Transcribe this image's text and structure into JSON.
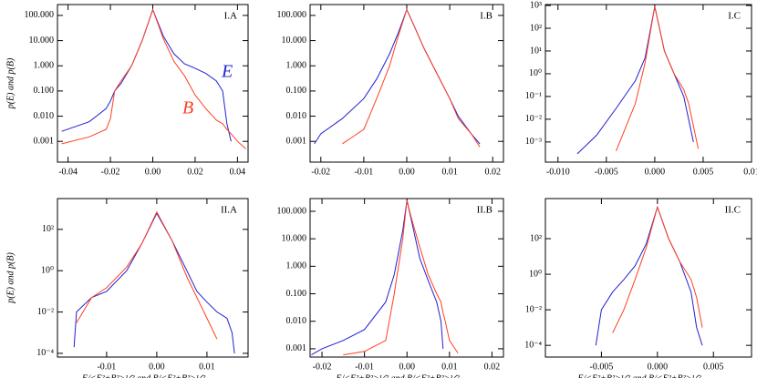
{
  "chart_data": [
    {
      "type": "line",
      "annotation": "I.A",
      "y_label": "p(E) and p(B)",
      "ylog": true,
      "xlim": [
        -0.045,
        0.045
      ],
      "ylim": [
        0.00015,
        270
      ],
      "xticks": [
        -0.04,
        -0.02,
        {
          "value": 0,
          "label": "0.00"
        },
        0.02,
        0.04
      ],
      "yticks": [
        {
          "value": 100,
          "label": "100.000"
        },
        {
          "value": 10,
          "label": "10.000"
        },
        {
          "value": 1,
          "label": "1.000"
        },
        {
          "value": 0.1,
          "label": "0.100"
        },
        {
          "value": 0.01,
          "label": "0.010"
        },
        0.001
      ],
      "x": [
        -0.043,
        -0.03,
        -0.022,
        -0.02,
        -0.018,
        -0.015,
        -0.01,
        -0.005,
        0,
        0.005,
        0.01,
        0.015,
        0.02,
        0.025,
        0.03,
        0.033,
        0.035,
        0.037,
        0.04,
        0.044
      ],
      "series": [
        {
          "name": "E",
          "color": "#2020d0",
          "values": [
            0.0025,
            0.006,
            0.02,
            0.04,
            0.1,
            0.2,
            1,
            10,
            170,
            15,
            3,
            1.2,
            0.8,
            0.5,
            0.25,
            0.1,
            0.005,
            0.001,
            null,
            null
          ]
        },
        {
          "name": "B",
          "color": "#ff4020",
          "values": [
            0.0008,
            0.0015,
            0.003,
            0.008,
            0.1,
            0.25,
            1,
            10,
            170,
            12,
            1.5,
            0.4,
            0.07,
            0.02,
            0.007,
            0.005,
            0.003,
            0.002,
            0.001,
            0.0005
          ]
        }
      ]
    },
    {
      "type": "line",
      "annotation": "I.B",
      "ylog": true,
      "xlim": [
        -0.0225,
        0.0225
      ],
      "ylim": [
        0.00015,
        270
      ],
      "xticks": [
        -0.02,
        -0.01,
        {
          "value": 0,
          "label": "0.00"
        },
        0.01,
        0.02
      ],
      "yticks": [
        {
          "value": 100,
          "label": "100.000"
        },
        {
          "value": 10,
          "label": "10.000"
        },
        {
          "value": 1,
          "label": "1.000"
        },
        {
          "value": 0.1,
          "label": "0.100"
        },
        {
          "value": 0.01,
          "label": "0.010"
        },
        0.001
      ],
      "x": [
        -0.0215,
        -0.02,
        -0.015,
        -0.01,
        -0.007,
        -0.004,
        -0.002,
        0,
        0.002,
        0.004,
        0.007,
        0.01,
        0.012,
        0.015,
        0.017
      ],
      "series": [
        {
          "color": "#2020d0",
          "values": [
            0.0008,
            0.002,
            0.008,
            0.05,
            0.3,
            3,
            20,
            170,
            30,
            5,
            0.5,
            0.05,
            0.01,
            0.002,
            0.0008
          ]
        },
        {
          "color": "#ff4020",
          "values": [
            null,
            null,
            0.0008,
            0.003,
            0.05,
            1,
            15,
            170,
            30,
            5,
            0.5,
            0.05,
            0.008,
            0.002,
            0.0006
          ]
        }
      ]
    },
    {
      "type": "line",
      "annotation": "I.C",
      "ylog": true,
      "xlim": [
        -0.0113,
        0.01
      ],
      "ylim": [
        0.00013,
        1100
      ],
      "xticks": [
        {
          "value": -0.01,
          "label": "-0.010"
        },
        -0.005,
        {
          "value": 0,
          "label": "0.000"
        },
        0.005,
        0.01
      ],
      "yticks": [
        {
          "value": 1000,
          "label": "10³"
        },
        {
          "value": 100,
          "label": "10²"
        },
        {
          "value": 10,
          "label": "10¹"
        },
        {
          "value": 1,
          "label": "10⁰"
        },
        {
          "value": 0.1,
          "label": "10⁻¹"
        },
        {
          "value": 0.01,
          "label": "10⁻²"
        },
        {
          "value": 0.001,
          "label": "10⁻³"
        }
      ],
      "x": [
        -0.008,
        -0.006,
        -0.004,
        -0.002,
        -0.001,
        0,
        0.001,
        0.002,
        0.003,
        0.0035,
        0.004,
        0.0045
      ],
      "series": [
        {
          "color": "#2020d0",
          "values": [
            0.0003,
            0.002,
            0.03,
            0.5,
            5,
            900,
            10,
            1,
            0.1,
            0.01,
            0.001,
            null
          ]
        },
        {
          "color": "#ff4020",
          "values": [
            null,
            null,
            0.0004,
            0.05,
            3,
            900,
            10,
            1,
            0.2,
            0.05,
            0.005,
            0.0005
          ]
        }
      ]
    },
    {
      "type": "line",
      "annotation": "II.A",
      "y_label": "p(E) and p(B)",
      "x_label": "E/<E²+B²>¹ᐟ²  and  B/<E²+B²>¹ᐟ²",
      "ylog": true,
      "xlim": [
        -0.0198,
        0.0182
      ],
      "ylim": [
        6.6e-05,
        3100
      ],
      "xticks": [
        -0.01,
        {
          "value": 0,
          "label": "0.00"
        },
        0.01
      ],
      "yticks": [
        {
          "value": 100,
          "label": "10²"
        },
        {
          "value": 1,
          "label": "10⁰"
        },
        {
          "value": 0.01,
          "label": "10⁻²"
        },
        {
          "value": 0.0001,
          "label": "10⁻⁴"
        }
      ],
      "x": [
        -0.0165,
        -0.016,
        -0.013,
        -0.01,
        -0.006,
        -0.003,
        0,
        0.003,
        0.006,
        0.008,
        0.01,
        0.012,
        0.014,
        0.015,
        0.0155
      ],
      "series": [
        {
          "color": "#2020d0",
          "values": [
            0.0002,
            0.01,
            0.05,
            0.1,
            1,
            20,
            600,
            30,
            1,
            0.1,
            0.03,
            0.01,
            0.005,
            0.001,
            0.0001
          ]
        },
        {
          "color": "#ff4020",
          "values": [
            null,
            0.003,
            0.05,
            0.15,
            1.5,
            20,
            700,
            30,
            0.5,
            0.05,
            0.005,
            0.0005,
            null,
            null,
            null
          ]
        }
      ]
    },
    {
      "type": "line",
      "annotation": "II.B",
      "x_label": "E/<E²+B²>¹ᐟ²  and  B/<E²+B²>¹ᐟ²",
      "ylog": true,
      "xlim": [
        -0.0228,
        0.0227
      ],
      "ylim": [
        0.0005,
        290
      ],
      "xticks": [
        -0.02,
        -0.01,
        {
          "value": 0,
          "label": "0.00"
        },
        0.01,
        0.02
      ],
      "yticks": [
        {
          "value": 100,
          "label": "100.000"
        },
        {
          "value": 10,
          "label": "10.000"
        },
        {
          "value": 1,
          "label": "1.000"
        },
        {
          "value": 0.1,
          "label": "0.100"
        },
        {
          "value": 0.01,
          "label": "0.010"
        },
        0.001
      ],
      "x": [
        -0.0225,
        -0.02,
        -0.015,
        -0.01,
        -0.005,
        -0.003,
        -0.001,
        0,
        0.001,
        0.003,
        0.005,
        0.007,
        0.008,
        0.0085,
        0.009,
        0.01,
        0.012
      ],
      "series": [
        {
          "color": "#2020d0",
          "values": [
            0.0006,
            0.001,
            0.002,
            0.005,
            0.05,
            0.5,
            20,
            250,
            50,
            2,
            0.3,
            0.05,
            0.01,
            0.001,
            null,
            null,
            null
          ]
        },
        {
          "color": "#ff4020",
          "values": [
            null,
            null,
            0.0006,
            0.0008,
            0.002,
            0.1,
            10,
            250,
            60,
            5,
            0.5,
            0.1,
            0.05,
            0.02,
            0.01,
            0.002,
            0.0007
          ]
        }
      ]
    },
    {
      "type": "line",
      "annotation": "II.C",
      "x_label": "E/<E²+B²>¹ᐟ²  and  B/<E²+B²>¹ᐟ²",
      "ylog": true,
      "xlim": [
        -0.01,
        0.0084
      ],
      "ylim": [
        2.2e-05,
        18000
      ],
      "xticks": [
        -0.005,
        {
          "value": 0,
          "label": "0.000"
        },
        0.005
      ],
      "yticks": [
        {
          "value": 100,
          "label": "10²"
        },
        {
          "value": 1,
          "label": "10⁰"
        },
        {
          "value": 0.01,
          "label": "10⁻²"
        },
        {
          "value": 0.0001,
          "label": "10⁻⁴"
        }
      ],
      "x": [
        -0.0055,
        -0.005,
        -0.004,
        -0.003,
        -0.002,
        -0.001,
        0,
        0.001,
        0.002,
        0.003,
        0.0035,
        0.004
      ],
      "series": [
        {
          "color": "#2020d0",
          "values": [
            0.0001,
            0.01,
            0.1,
            0.5,
            3,
            50,
            6000,
            100,
            5,
            0.1,
            0.001,
            0.0001
          ]
        },
        {
          "color": "#ff4020",
          "values": [
            null,
            null,
            0.0005,
            0.01,
            0.5,
            30,
            6000,
            100,
            5,
            0.5,
            0.05,
            0.001
          ]
        }
      ]
    }
  ]
}
